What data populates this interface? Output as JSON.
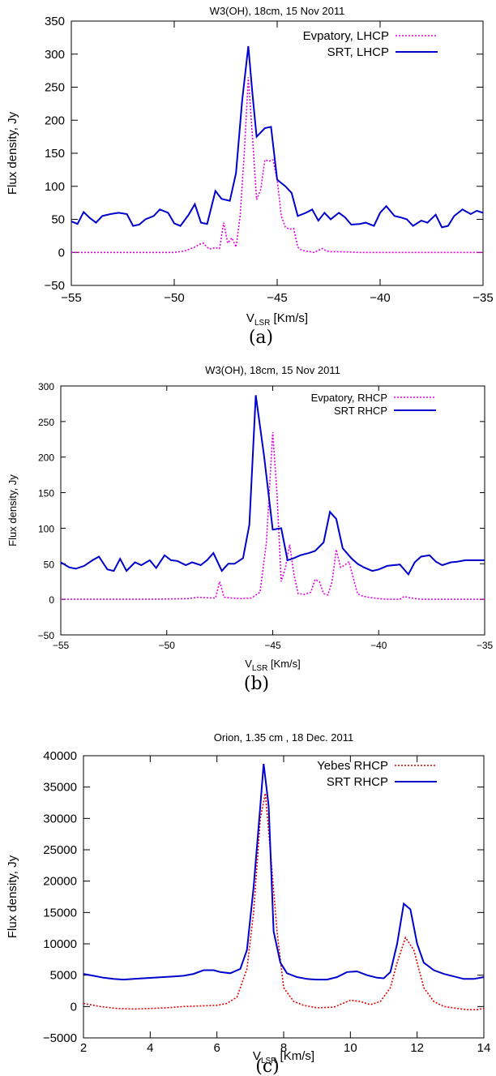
{
  "colors": {
    "lhcp_dotted": "#e000e0",
    "rhcp_dotted": "#e000e0",
    "yebes_dotted": "#e00000",
    "srt_solid": "#0000cc",
    "axis": "#000000"
  },
  "chart_data": [
    {
      "type": "line",
      "title": "W3(OH), 18cm, 15 Nov 2011",
      "xlabel": "V",
      "xlabel_sub": "LSR",
      "xlabel_unit": " [Km/s]",
      "ylabel": "Flux density, Jy",
      "xlim": [
        -55,
        -35
      ],
      "ylim": [
        -50,
        350
      ],
      "xticks": [
        -55,
        -50,
        -45,
        -40,
        -35
      ],
      "yticks": [
        -50,
        0,
        50,
        100,
        150,
        200,
        250,
        300,
        350
      ],
      "xtick_labels": [
        "−55",
        "−50",
        "−45",
        "−40",
        "−35"
      ],
      "ytick_labels": [
        "−50",
        "0",
        "50",
        "100",
        "150",
        "200",
        "250",
        "300",
        "350"
      ],
      "legend_position": "top-right",
      "caption": "(a)",
      "series": [
        {
          "name": "Evpatory, LHCP",
          "style": "dotted",
          "color": "#e000e0",
          "x": [
            -55,
            -54,
            -53,
            -52,
            -51,
            -50,
            -49.5,
            -49,
            -48.8,
            -48.6,
            -48.3,
            -48,
            -47.8,
            -47.6,
            -47.4,
            -47.2,
            -47.0,
            -46.8,
            -46.6,
            -46.4,
            -46.2,
            -46.0,
            -45.8,
            -45.6,
            -45.4,
            -45.2,
            -45.0,
            -44.8,
            -44.6,
            -44.4,
            -44.2,
            -44.0,
            -43.8,
            -43.6,
            -43.2,
            -43.0,
            -42.8,
            -42.6,
            -42.4,
            -42.0,
            -41,
            -40,
            -39,
            -38,
            -37,
            -36,
            -35
          ],
          "y": [
            0,
            0,
            0,
            0,
            0,
            0,
            2,
            8,
            12,
            14,
            5,
            7,
            6,
            45,
            14,
            22,
            8,
            55,
            150,
            265,
            175,
            80,
            95,
            140,
            138,
            140,
            110,
            55,
            38,
            35,
            36,
            8,
            3,
            2,
            0,
            3,
            6,
            2,
            1,
            1,
            0,
            0,
            0,
            0,
            0,
            0,
            0
          ]
        },
        {
          "name": "SRT, LHCP",
          "style": "solid",
          "color": "#0000cc",
          "x": [
            -55,
            -54.7,
            -54.4,
            -54.1,
            -53.8,
            -53.5,
            -53.1,
            -52.7,
            -52.3,
            -52.0,
            -51.7,
            -51.4,
            -51.0,
            -50.7,
            -50.3,
            -50.0,
            -49.7,
            -49.3,
            -49.0,
            -48.7,
            -48.4,
            -48.0,
            -47.7,
            -47.3,
            -47.0,
            -46.7,
            -46.4,
            -46.2,
            -46.0,
            -45.6,
            -45.3,
            -45.0,
            -44.6,
            -44.3,
            -44.0,
            -43.6,
            -43.3,
            -43.0,
            -42.7,
            -42.4,
            -42.0,
            -41.7,
            -41.4,
            -41.0,
            -40.7,
            -40.3,
            -40.0,
            -39.7,
            -39.3,
            -39.0,
            -38.7,
            -38.4,
            -38.0,
            -37.7,
            -37.3,
            -37.0,
            -36.7,
            -36.4,
            -36.0,
            -35.6,
            -35.3,
            -35.0
          ],
          "y": [
            47,
            43,
            61,
            52,
            45,
            55,
            58,
            60,
            58,
            40,
            42,
            50,
            55,
            65,
            60,
            44,
            40,
            57,
            73,
            45,
            43,
            93,
            81,
            78,
            120,
            230,
            312,
            240,
            175,
            188,
            190,
            110,
            100,
            90,
            55,
            60,
            65,
            48,
            60,
            50,
            60,
            53,
            42,
            43,
            45,
            40,
            60,
            70,
            55,
            53,
            50,
            40,
            48,
            45,
            57,
            38,
            40,
            55,
            65,
            58,
            63,
            60
          ]
        }
      ]
    },
    {
      "type": "line",
      "title": "W3(OH), 18cm, 15 Nov 2011",
      "xlabel": "V",
      "xlabel_sub": "LSR",
      "xlabel_unit": " [Km/s]",
      "ylabel": "Flux density, Jy",
      "xlim": [
        -55,
        -35
      ],
      "ylim": [
        -50,
        300
      ],
      "xticks": [
        -55,
        -50,
        -45,
        -40,
        -35
      ],
      "yticks": [
        -50,
        0,
        50,
        100,
        150,
        200,
        250,
        300
      ],
      "xtick_labels": [
        "−55",
        "−50",
        "−45",
        "−40",
        "−35"
      ],
      "ytick_labels": [
        "−50",
        "0",
        "50",
        "100",
        "150",
        "200",
        "250",
        "300"
      ],
      "legend_position": "top-right",
      "caption": "(b)",
      "series": [
        {
          "name": "Evpatory, RHCP",
          "style": "dotted",
          "color": "#e000e0",
          "x": [
            -55,
            -53,
            -51,
            -49,
            -48.5,
            -48,
            -47.7,
            -47.5,
            -47.3,
            -47,
            -46.5,
            -46,
            -45.6,
            -45.3,
            -45.0,
            -44.8,
            -44.6,
            -44.4,
            -44.2,
            -44.0,
            -43.8,
            -43.5,
            -43.2,
            -43.0,
            -42.8,
            -42.6,
            -42.4,
            -42.2,
            -42.0,
            -41.8,
            -41.6,
            -41.4,
            -41.2,
            -41.0,
            -40.8,
            -40.5,
            -40.0,
            -39.5,
            -39.0,
            -38.8,
            -38.5,
            -38.0,
            -37,
            -36,
            -35
          ],
          "y": [
            0,
            0,
            0,
            1,
            3,
            2,
            2,
            25,
            3,
            2,
            1,
            2,
            10,
            80,
            235,
            150,
            25,
            45,
            77,
            35,
            8,
            7,
            10,
            28,
            25,
            8,
            6,
            25,
            70,
            45,
            48,
            53,
            30,
            8,
            5,
            3,
            1,
            0,
            0,
            4,
            2,
            0,
            0,
            0,
            0
          ]
        },
        {
          "name": "SRT RHCP",
          "style": "solid",
          "color": "#0000cc",
          "x": [
            -55,
            -54.6,
            -54.3,
            -53.9,
            -53.5,
            -53.2,
            -52.8,
            -52.5,
            -52.2,
            -51.9,
            -51.5,
            -51.2,
            -50.8,
            -50.5,
            -50.1,
            -49.8,
            -49.5,
            -49.1,
            -48.8,
            -48.4,
            -48.1,
            -47.8,
            -47.4,
            -47.1,
            -46.8,
            -46.4,
            -46.1,
            -45.8,
            -45.4,
            -45.0,
            -44.6,
            -44.3,
            -44.0,
            -43.7,
            -43.3,
            -43.0,
            -42.6,
            -42.3,
            -42.0,
            -41.7,
            -41.3,
            -41.0,
            -40.7,
            -40.3,
            -40.0,
            -39.6,
            -39.3,
            -39.0,
            -38.6,
            -38.3,
            -38.0,
            -37.6,
            -37.3,
            -37.0,
            -36.6,
            -36.3,
            -35.9,
            -35.6,
            -35.3,
            -35.0
          ],
          "y": [
            52,
            45,
            43,
            47,
            55,
            60,
            42,
            40,
            57,
            40,
            52,
            48,
            55,
            44,
            62,
            55,
            54,
            48,
            52,
            48,
            55,
            65,
            40,
            50,
            50,
            58,
            105,
            287,
            200,
            98,
            100,
            55,
            58,
            62,
            65,
            68,
            80,
            123,
            113,
            72,
            58,
            50,
            45,
            40,
            42,
            47,
            48,
            49,
            35,
            52,
            60,
            62,
            53,
            48,
            52,
            53,
            55,
            55,
            55,
            55
          ]
        }
      ]
    },
    {
      "type": "line",
      "title": "Orion, 1.35 cm , 18 Dec. 2011",
      "xlabel": "V",
      "xlabel_sub": "LSR",
      "xlabel_unit": " [Km/s]",
      "ylabel": "Flux density, Jy",
      "xlim": [
        2,
        14
      ],
      "ylim": [
        -5000,
        40000
      ],
      "xticks": [
        2,
        4,
        6,
        8,
        10,
        12,
        14
      ],
      "yticks": [
        -5000,
        0,
        5000,
        10000,
        15000,
        20000,
        25000,
        30000,
        35000,
        40000
      ],
      "xtick_labels": [
        "2",
        "4",
        "6",
        "8",
        "10",
        "12",
        "14"
      ],
      "ytick_labels": [
        "−5000",
        "0",
        "5000",
        "10000",
        "15000",
        "20000",
        "25000",
        "30000",
        "35000",
        "40000"
      ],
      "legend_position": "top-right",
      "caption": "(c)",
      "series": [
        {
          "name": "Yebes RHCP",
          "style": "dotted",
          "color": "#e00000",
          "x": [
            2,
            2.5,
            3,
            3.5,
            4,
            4.5,
            5,
            5.5,
            6,
            6.3,
            6.6,
            6.9,
            7.1,
            7.3,
            7.45,
            7.6,
            7.8,
            8.0,
            8.3,
            8.6,
            9.0,
            9.5,
            10.0,
            10.3,
            10.6,
            10.9,
            11.2,
            11.4,
            11.65,
            11.9,
            12.2,
            12.5,
            12.8,
            13.2,
            13.5,
            13.8,
            14
          ],
          "y": [
            500,
            0,
            -300,
            -400,
            -300,
            -200,
            0,
            100,
            200,
            500,
            1500,
            6000,
            15000,
            30000,
            34000,
            25000,
            12000,
            3000,
            800,
            200,
            -200,
            -100,
            1000,
            800,
            300,
            800,
            3000,
            7000,
            11000,
            9000,
            3000,
            800,
            0,
            -300,
            -500,
            -500,
            -300
          ]
        },
        {
          "name": "SRT RHCP",
          "style": "solid",
          "color": "#0000cc",
          "x": [
            2,
            2.3,
            2.6,
            2.9,
            3.2,
            3.5,
            3.8,
            4.1,
            4.4,
            4.7,
            5.0,
            5.3,
            5.6,
            5.9,
            6.1,
            6.4,
            6.7,
            6.9,
            7.1,
            7.3,
            7.4,
            7.55,
            7.7,
            7.9,
            8.1,
            8.4,
            8.7,
            9.0,
            9.3,
            9.6,
            9.9,
            10.2,
            10.5,
            10.8,
            11.0,
            11.2,
            11.4,
            11.6,
            11.8,
            12.0,
            12.2,
            12.5,
            12.8,
            13.1,
            13.4,
            13.7,
            14.0
          ],
          "y": [
            5200,
            4900,
            4600,
            4400,
            4300,
            4400,
            4500,
            4600,
            4700,
            4800,
            4900,
            5200,
            5800,
            5800,
            5500,
            5300,
            6000,
            9000,
            19000,
            32000,
            38700,
            32000,
            12000,
            7000,
            5300,
            4700,
            4400,
            4300,
            4300,
            4700,
            5500,
            5600,
            5000,
            4600,
            4500,
            5500,
            10000,
            16400,
            15500,
            10000,
            7000,
            5800,
            5200,
            4800,
            4400,
            4400,
            4700
          ]
        }
      ]
    }
  ]
}
